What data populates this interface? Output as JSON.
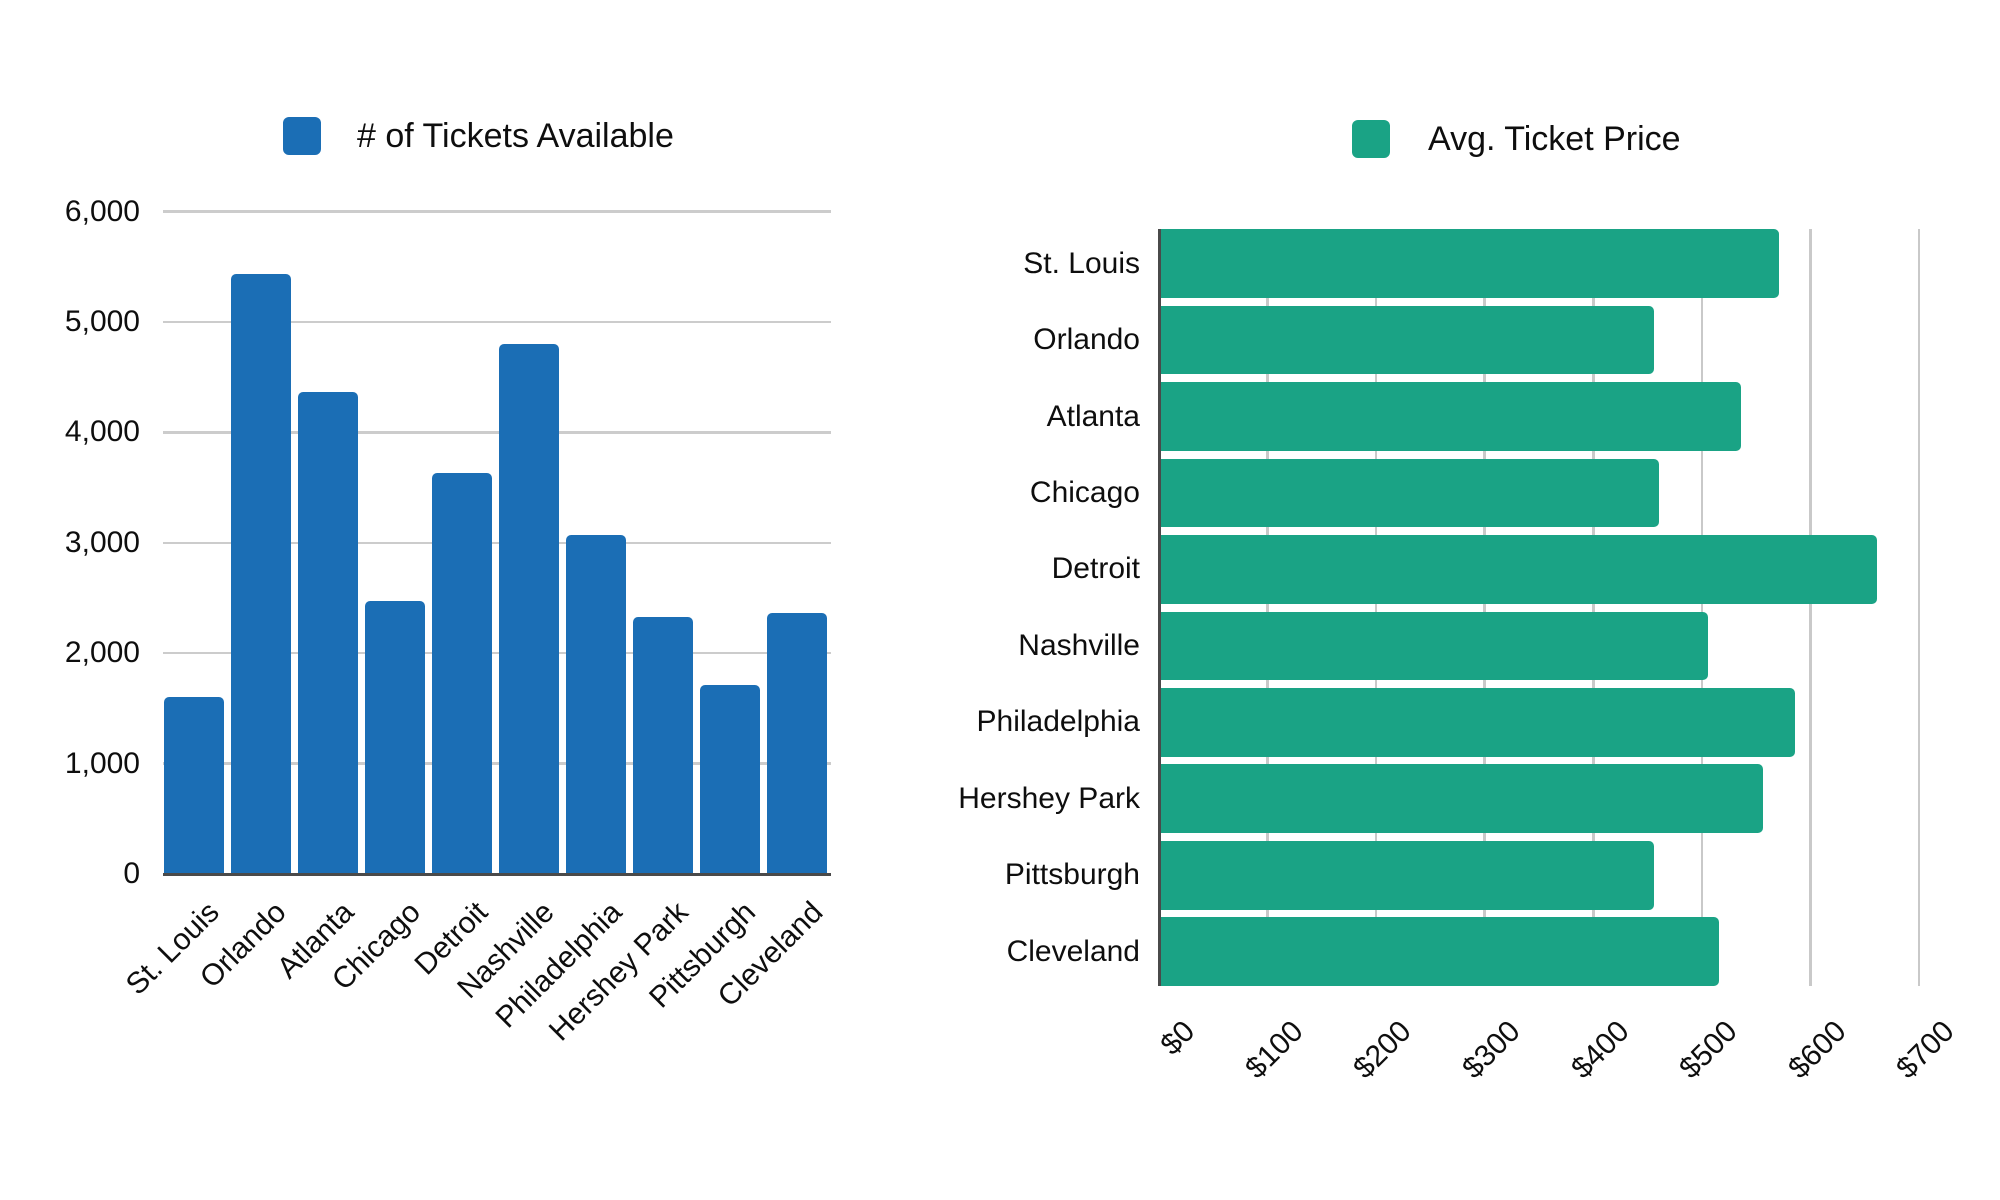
{
  "page": {
    "background": "#ffffff",
    "text_color": "#0e0e0e",
    "gridline_color": "#cccccc",
    "axis_color": "#4a4a4a"
  },
  "chart_data": [
    {
      "type": "bar",
      "orientation": "vertical",
      "legend": "# of Tickets Available",
      "legend_swatch_icon": "blue-square-swatch",
      "color": "#1b6eb5",
      "categories": [
        "St. Louis",
        "Orlando",
        "Atlanta",
        "Chicago",
        "Detroit",
        "Nashville",
        "Philadelphia",
        "Hershey Park",
        "Pittsburgh",
        "Cleveland"
      ],
      "values": [
        1600,
        5440,
        4370,
        2470,
        3630,
        4800,
        3070,
        2330,
        1710,
        2360
      ],
      "title": "",
      "xlabel": "",
      "ylabel": "",
      "ylim": [
        0,
        6000
      ],
      "yticks": [
        0,
        1000,
        2000,
        3000,
        4000,
        5000,
        6000
      ],
      "ytick_labels": [
        "0",
        "1,000",
        "2,000",
        "3,000",
        "4,000",
        "5,000",
        "6,000"
      ],
      "grid": "horizontal",
      "xtick_rotation": 45,
      "legend_position": "top"
    },
    {
      "type": "bar",
      "orientation": "horizontal",
      "legend": "Avg. Ticket Price",
      "legend_swatch_icon": "green-square-swatch",
      "color": "#1aa385",
      "categories": [
        "St. Louis",
        "Orlando",
        "Atlanta",
        "Chicago",
        "Detroit",
        "Nashville",
        "Philadelphia",
        "Hershey Park",
        "Pittsburgh",
        "Cleveland"
      ],
      "values": [
        570,
        455,
        535,
        460,
        660,
        505,
        585,
        555,
        455,
        515
      ],
      "title": "",
      "xlabel": "",
      "ylabel": "",
      "xlim": [
        0,
        700
      ],
      "xticks": [
        0,
        100,
        200,
        300,
        400,
        500,
        600,
        700
      ],
      "xtick_labels": [
        "$0",
        "$100",
        "$200",
        "$300",
        "$400",
        "$500",
        "$600",
        "$700"
      ],
      "grid": "vertical",
      "xtick_rotation": 45,
      "legend_position": "top"
    }
  ]
}
